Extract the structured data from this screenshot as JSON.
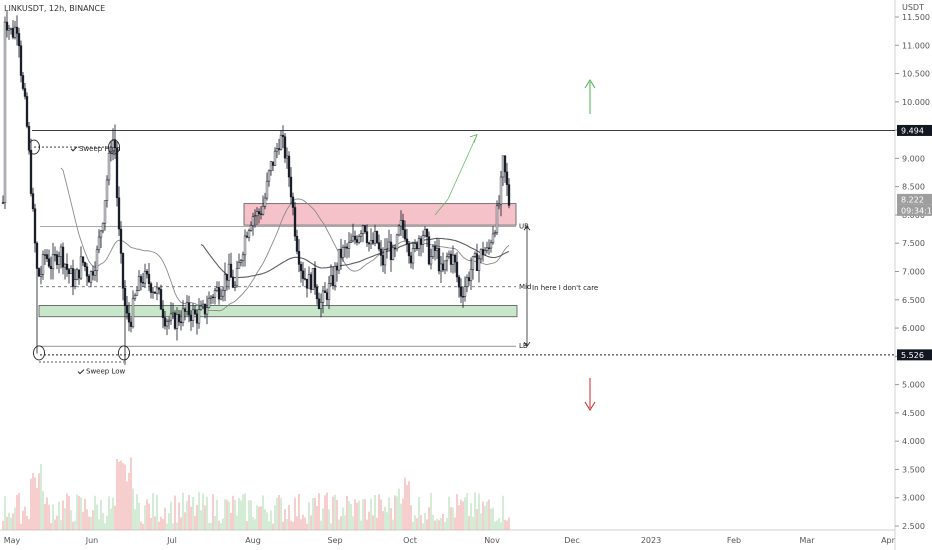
{
  "header": {
    "symbol": "LINKUSDT, 12h, BINANCE"
  },
  "chart_data": {
    "type": "candlestick",
    "title": "",
    "unit": "USDT",
    "yaxis_ticks": [
      "11.500",
      "11.000",
      "10.500",
      "10.000",
      "9.500",
      "9.000",
      "8.500",
      "8.000",
      "7.500",
      "7.000",
      "6.500",
      "6.000",
      "5.500",
      "5.000",
      "4.500",
      "4.000",
      "3.500",
      "3.000",
      "2.500"
    ],
    "ylim": [
      2.4,
      11.7
    ],
    "xaxis_ticks": [
      "May",
      "Jun",
      "Jul",
      "Aug",
      "Sep",
      "Oct",
      "Nov",
      "Dec",
      "2023",
      "Feb",
      "Mar",
      "Apr"
    ],
    "price_tags": [
      {
        "value": "9.494",
        "bg": "#131722",
        "fg": "#ffffff"
      },
      {
        "value": "8.222",
        "bg": "#9e9e9e",
        "fg": "#ffffff"
      },
      {
        "value": "09:34:10",
        "bg": "#9e9e9e",
        "fg": "#ffffff"
      },
      {
        "value": "5.526",
        "bg": "#131722",
        "fg": "#ffffff"
      }
    ],
    "levels": [
      {
        "name": "range-high",
        "value": 9.494
      },
      {
        "name": "range-low",
        "value": 5.526
      }
    ],
    "zones": [
      {
        "name": "supply",
        "from": 7.82,
        "to": 8.2,
        "color": "#f4c2c8"
      },
      {
        "name": "demand",
        "from": 6.2,
        "to": 6.4,
        "color": "#c8e6c9"
      }
    ],
    "annotations": [
      "Sweep High",
      "Sweep Low",
      "UB",
      "Mid",
      "LB",
      "In here I don't care"
    ],
    "close_price": 8.222,
    "up_color": "#ffffff",
    "down_color": "#131722",
    "volume_up_color": "#a5d6a7",
    "volume_down_color": "#ef9a9a",
    "ma_color": "#5d5d5d",
    "arrow_up_color": "#4caf50",
    "arrow_down_color": "#c62828"
  }
}
